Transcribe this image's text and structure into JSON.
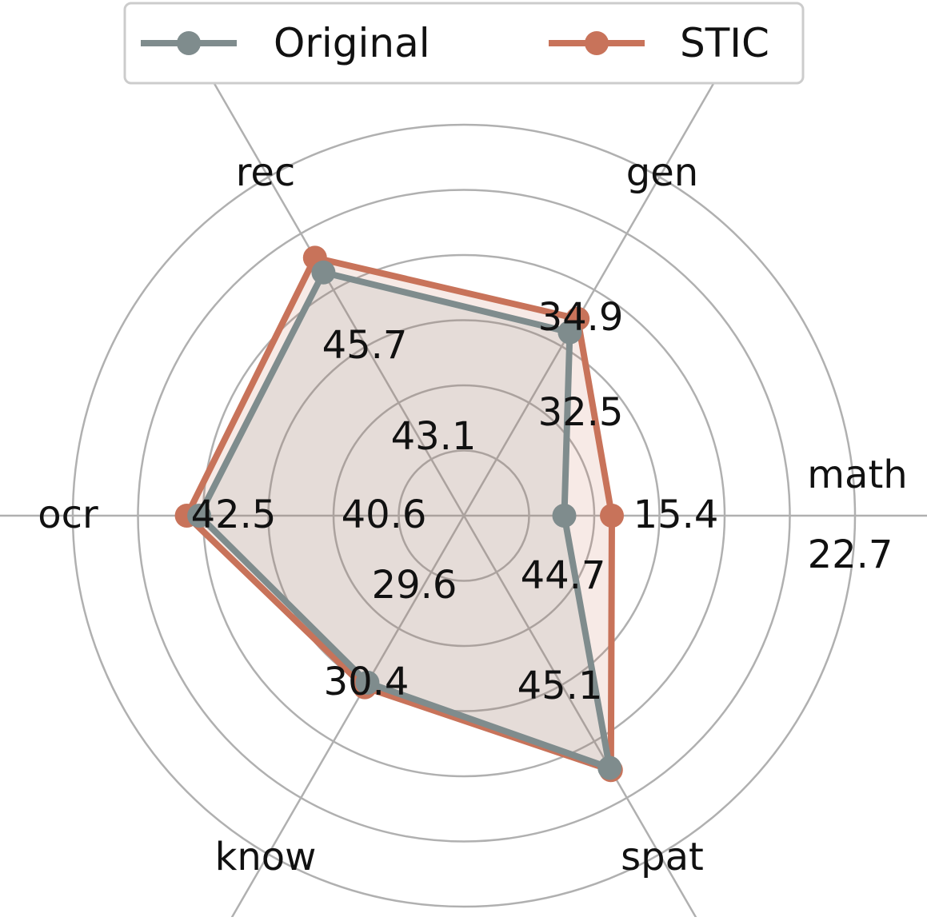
{
  "chart_data": {
    "type": "radar",
    "title": "",
    "axes": [
      "math",
      "gen",
      "rec",
      "ocr",
      "know",
      "spat"
    ],
    "rings": [
      10,
      20,
      30,
      40,
      50,
      60
    ],
    "series": [
      {
        "name": "Original",
        "values": [
          15.4,
          32.5,
          43.1,
          40.6,
          29.6,
          44.7
        ],
        "value_labels": [
          "15.4",
          "32.5",
          "43.1",
          "40.6",
          "29.6",
          "44.7"
        ],
        "color": "#7f8c8d"
      },
      {
        "name": "STIC",
        "values": [
          22.7,
          34.9,
          45.7,
          42.5,
          30.4,
          45.1
        ],
        "value_labels": [
          "22.7",
          "34.9",
          "45.7",
          "42.5",
          "30.4",
          "45.1"
        ],
        "color": "#c8735a"
      }
    ],
    "grid": true,
    "legend_position": "top"
  },
  "colors": {
    "grid": "#b0b0b0",
    "original": "#7f8c8d",
    "stic": "#c8735a"
  }
}
